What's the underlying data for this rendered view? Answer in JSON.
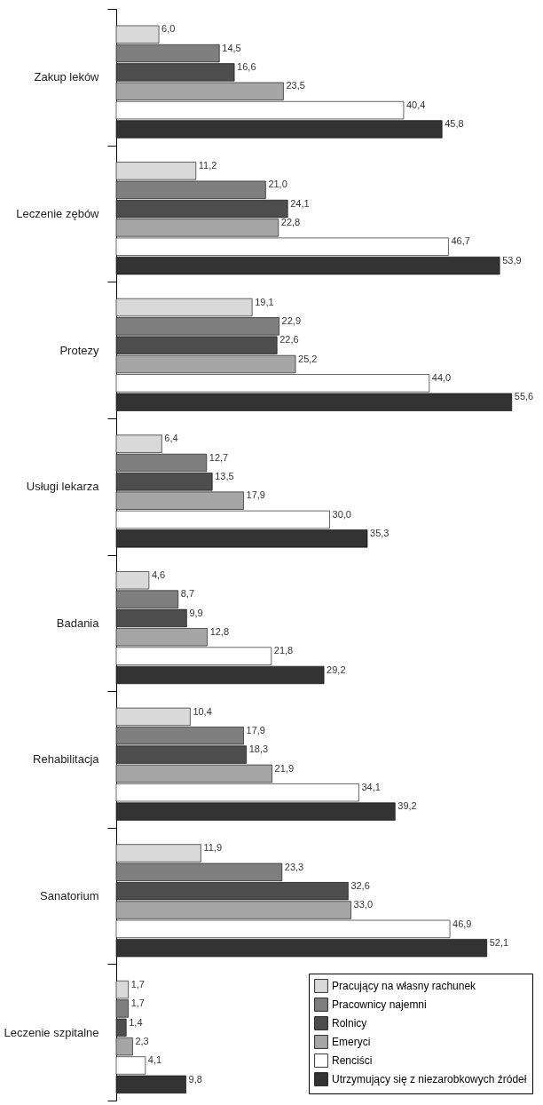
{
  "chart_data": {
    "type": "bar",
    "orientation": "horizontal",
    "legend": "bottom right",
    "grid": false,
    "categories": [
      "Zakup leków",
      "Leczenie zębów",
      "Protezy",
      "Usługi lekarza",
      "Badania",
      "Rehabilitacja",
      "Sanatorium",
      "Leczenie szpitalne"
    ],
    "series": [
      {
        "name": "Pracujący na własny rachunek",
        "color": "#d9d9d9",
        "values": [
          6.0,
          11.2,
          19.1,
          6.4,
          4.6,
          10.4,
          11.9,
          1.7
        ],
        "value_labels": [
          "6,0",
          "11,2",
          "19,1",
          "6,4",
          "4,6",
          "10,4",
          "11,9",
          "1,7"
        ]
      },
      {
        "name": "Pracownicy najemni",
        "color": "#7f7f7f",
        "values": [
          14.5,
          21.0,
          22.9,
          12.7,
          8.7,
          17.9,
          23.3,
          1.7
        ],
        "value_labels": [
          "14,5",
          "21,0",
          "22,9",
          "12,7",
          "8,7",
          "17,9",
          "23,3",
          "1,7"
        ]
      },
      {
        "name": "Rolnicy",
        "color": "#4d4d4d",
        "values": [
          16.6,
          24.1,
          22.6,
          13.5,
          9.9,
          18.3,
          32.6,
          1.4
        ],
        "value_labels": [
          "16,6",
          "24,1",
          "22,6",
          "13,5",
          "9,9",
          "18,3",
          "32,6",
          "1,4"
        ]
      },
      {
        "name": "Emeryci",
        "color": "#a6a6a6",
        "values": [
          23.5,
          22.8,
          25.2,
          17.9,
          12.8,
          21.9,
          33.0,
          2.3
        ],
        "value_labels": [
          "23,5",
          "22,8",
          "25,2",
          "17,9",
          "12,8",
          "21,9",
          "33,0",
          "2,3"
        ]
      },
      {
        "name": "Renciści",
        "color": "#ffffff",
        "values": [
          40.4,
          46.7,
          44.0,
          30.0,
          21.8,
          34.1,
          46.9,
          4.1
        ],
        "value_labels": [
          "40,4",
          "46,7",
          "44,0",
          "30,0",
          "21,8",
          "34,1",
          "46,9",
          "4,1"
        ]
      },
      {
        "name": "Utrzymujący się z niezarobkowych źródeł",
        "color": "#333333",
        "values": [
          45.8,
          53.9,
          55.6,
          35.3,
          29.2,
          39.2,
          52.1,
          9.8
        ],
        "value_labels": [
          "45,8",
          "53,9",
          "55,6",
          "35,3",
          "29,2",
          "39,2",
          "52,1",
          "9,8"
        ]
      }
    ]
  }
}
